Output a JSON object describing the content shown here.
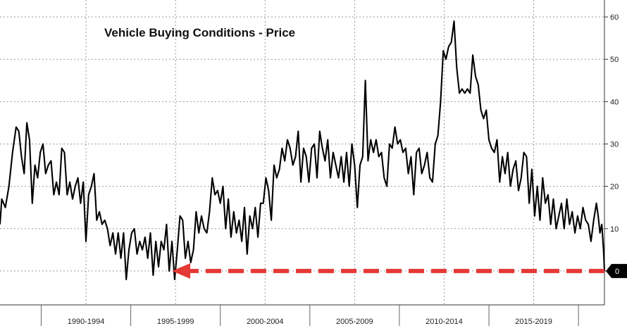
{
  "chart_data": {
    "type": "line",
    "title": "Vehicle Buying Conditions - Price",
    "xlabel": "",
    "ylabel": "",
    "x_range": [
      1987.7,
      2021.45
    ],
    "ylim": [
      -8,
      64
    ],
    "y_ticks": [
      0,
      10,
      20,
      30,
      40,
      50,
      60
    ],
    "y_axis_side": "right",
    "grid": true,
    "x_period_labels": [
      {
        "label": "1990-1994",
        "center": 1992.5
      },
      {
        "label": "1995-1999",
        "center": 1997.5
      },
      {
        "label": "2000-2004",
        "center": 2002.5
      },
      {
        "label": "2005-2009",
        "center": 2007.5
      },
      {
        "label": "2010-2014",
        "center": 2012.5
      },
      {
        "label": "2015-2019",
        "center": 2017.5
      }
    ],
    "x_period_boundaries": [
      1990,
      1995,
      2000,
      2005,
      2010,
      2015,
      2020
    ],
    "last_value_label": "0",
    "series": [
      {
        "color": "#000000",
        "points": [
          [
            1987.7,
            11
          ],
          [
            1987.8,
            17
          ],
          [
            1988.0,
            15
          ],
          [
            1988.2,
            20
          ],
          [
            1988.4,
            28
          ],
          [
            1988.6,
            34
          ],
          [
            1988.75,
            33
          ],
          [
            1988.9,
            27
          ],
          [
            1989.05,
            23
          ],
          [
            1989.2,
            35
          ],
          [
            1989.35,
            31
          ],
          [
            1989.5,
            16
          ],
          [
            1989.65,
            25
          ],
          [
            1989.8,
            22
          ],
          [
            1989.95,
            28
          ],
          [
            1990.1,
            30
          ],
          [
            1990.25,
            23
          ],
          [
            1990.4,
            25
          ],
          [
            1990.55,
            26
          ],
          [
            1990.7,
            18
          ],
          [
            1990.85,
            21
          ],
          [
            1991.0,
            18
          ],
          [
            1991.15,
            29
          ],
          [
            1991.3,
            28
          ],
          [
            1991.45,
            18
          ],
          [
            1991.6,
            21
          ],
          [
            1991.75,
            17
          ],
          [
            1991.9,
            20
          ],
          [
            1992.05,
            22
          ],
          [
            1992.2,
            16
          ],
          [
            1992.35,
            21
          ],
          [
            1992.5,
            7
          ],
          [
            1992.65,
            18
          ],
          [
            1992.8,
            20
          ],
          [
            1992.95,
            23
          ],
          [
            1993.1,
            12
          ],
          [
            1993.25,
            14
          ],
          [
            1993.4,
            11
          ],
          [
            1993.55,
            12
          ],
          [
            1993.7,
            10
          ],
          [
            1993.85,
            6
          ],
          [
            1994.0,
            9
          ],
          [
            1994.15,
            4
          ],
          [
            1994.3,
            9
          ],
          [
            1994.45,
            3
          ],
          [
            1994.6,
            9
          ],
          [
            1994.75,
            -2
          ],
          [
            1994.9,
            5
          ],
          [
            1995.05,
            9
          ],
          [
            1995.2,
            10
          ],
          [
            1995.35,
            4
          ],
          [
            1995.5,
            7
          ],
          [
            1995.65,
            5
          ],
          [
            1995.8,
            8
          ],
          [
            1995.95,
            3
          ],
          [
            1996.1,
            9
          ],
          [
            1996.25,
            -1
          ],
          [
            1996.4,
            7
          ],
          [
            1996.55,
            1
          ],
          [
            1996.7,
            7
          ],
          [
            1996.85,
            5
          ],
          [
            1997.0,
            11
          ],
          [
            1997.15,
            0
          ],
          [
            1997.3,
            7
          ],
          [
            1997.45,
            -2
          ],
          [
            1997.6,
            5
          ],
          [
            1997.75,
            13
          ],
          [
            1997.9,
            12
          ],
          [
            1998.05,
            3
          ],
          [
            1998.2,
            7
          ],
          [
            1998.35,
            2
          ],
          [
            1998.5,
            5
          ],
          [
            1998.65,
            14
          ],
          [
            1998.8,
            9
          ],
          [
            1998.95,
            13
          ],
          [
            1999.1,
            10
          ],
          [
            1999.25,
            9
          ],
          [
            1999.4,
            14
          ],
          [
            1999.55,
            22
          ],
          [
            1999.7,
            18
          ],
          [
            1999.85,
            19
          ],
          [
            2000.0,
            16
          ],
          [
            2000.15,
            20
          ],
          [
            2000.3,
            10
          ],
          [
            2000.45,
            17
          ],
          [
            2000.6,
            8
          ],
          [
            2000.75,
            14
          ],
          [
            2000.9,
            9
          ],
          [
            2001.05,
            12
          ],
          [
            2001.2,
            7
          ],
          [
            2001.35,
            15
          ],
          [
            2001.5,
            4
          ],
          [
            2001.65,
            13
          ],
          [
            2001.8,
            10
          ],
          [
            2001.95,
            15
          ],
          [
            2002.1,
            8
          ],
          [
            2002.25,
            16
          ],
          [
            2002.4,
            16
          ],
          [
            2002.55,
            22
          ],
          [
            2002.7,
            19
          ],
          [
            2002.85,
            12
          ],
          [
            2003.0,
            25
          ],
          [
            2003.15,
            22
          ],
          [
            2003.3,
            24
          ],
          [
            2003.45,
            29
          ],
          [
            2003.6,
            26
          ],
          [
            2003.75,
            31
          ],
          [
            2003.9,
            29
          ],
          [
            2004.05,
            25
          ],
          [
            2004.2,
            27
          ],
          [
            2004.35,
            33
          ],
          [
            2004.5,
            21
          ],
          [
            2004.65,
            29
          ],
          [
            2004.8,
            27
          ],
          [
            2004.95,
            21
          ],
          [
            2005.1,
            29
          ],
          [
            2005.25,
            30
          ],
          [
            2005.4,
            22
          ],
          [
            2005.55,
            33
          ],
          [
            2005.7,
            29
          ],
          [
            2005.85,
            26
          ],
          [
            2006.0,
            31
          ],
          [
            2006.15,
            22
          ],
          [
            2006.3,
            28
          ],
          [
            2006.45,
            25
          ],
          [
            2006.6,
            22
          ],
          [
            2006.75,
            27
          ],
          [
            2006.9,
            21
          ],
          [
            2007.05,
            28
          ],
          [
            2007.2,
            20
          ],
          [
            2007.35,
            30
          ],
          [
            2007.5,
            25
          ],
          [
            2007.65,
            15
          ],
          [
            2007.8,
            25
          ],
          [
            2007.95,
            27
          ],
          [
            2008.1,
            45
          ],
          [
            2008.25,
            26
          ],
          [
            2008.4,
            31
          ],
          [
            2008.55,
            28
          ],
          [
            2008.7,
            31
          ],
          [
            2008.85,
            27
          ],
          [
            2009.0,
            28
          ],
          [
            2009.15,
            22
          ],
          [
            2009.3,
            20
          ],
          [
            2009.45,
            30
          ],
          [
            2009.6,
            29
          ],
          [
            2009.75,
            34
          ],
          [
            2009.9,
            30
          ],
          [
            2010.05,
            31
          ],
          [
            2010.2,
            28
          ],
          [
            2010.35,
            29
          ],
          [
            2010.5,
            23
          ],
          [
            2010.65,
            27
          ],
          [
            2010.8,
            18
          ],
          [
            2010.95,
            28
          ],
          [
            2011.1,
            29
          ],
          [
            2011.25,
            23
          ],
          [
            2011.4,
            25
          ],
          [
            2011.55,
            28
          ],
          [
            2011.7,
            22
          ],
          [
            2011.85,
            21
          ],
          [
            2012.0,
            30
          ],
          [
            2012.15,
            32
          ],
          [
            2012.3,
            40
          ],
          [
            2012.45,
            52
          ],
          [
            2012.6,
            50
          ],
          [
            2012.75,
            53
          ],
          [
            2012.9,
            54
          ],
          [
            2013.05,
            59
          ],
          [
            2013.2,
            48
          ],
          [
            2013.35,
            42
          ],
          [
            2013.5,
            43
          ],
          [
            2013.65,
            42
          ],
          [
            2013.8,
            43
          ],
          [
            2013.95,
            42
          ],
          [
            2014.1,
            51
          ],
          [
            2014.25,
            46
          ],
          [
            2014.4,
            44
          ],
          [
            2014.55,
            38
          ],
          [
            2014.7,
            36
          ],
          [
            2014.85,
            38
          ],
          [
            2015.0,
            31
          ],
          [
            2015.15,
            29
          ],
          [
            2015.3,
            28
          ],
          [
            2015.45,
            31
          ],
          [
            2015.6,
            21
          ],
          [
            2015.75,
            27
          ],
          [
            2015.9,
            23
          ],
          [
            2016.05,
            28
          ],
          [
            2016.2,
            20
          ],
          [
            2016.35,
            24
          ],
          [
            2016.5,
            26
          ],
          [
            2016.65,
            19
          ],
          [
            2016.8,
            22
          ],
          [
            2016.95,
            28
          ],
          [
            2017.1,
            27
          ],
          [
            2017.25,
            16
          ],
          [
            2017.4,
            24
          ],
          [
            2017.55,
            13
          ],
          [
            2017.7,
            20
          ],
          [
            2017.85,
            12
          ],
          [
            2018.0,
            22
          ],
          [
            2018.15,
            16
          ],
          [
            2018.3,
            18
          ],
          [
            2018.45,
            11
          ],
          [
            2018.6,
            17
          ],
          [
            2018.75,
            10
          ],
          [
            2018.9,
            13
          ],
          [
            2019.05,
            16
          ],
          [
            2019.2,
            10
          ],
          [
            2019.35,
            17
          ],
          [
            2019.5,
            11
          ],
          [
            2019.65,
            14
          ],
          [
            2019.8,
            9
          ],
          [
            2019.95,
            13
          ],
          [
            2020.1,
            10
          ],
          [
            2020.25,
            15
          ],
          [
            2020.4,
            12
          ],
          [
            2020.55,
            11
          ],
          [
            2020.7,
            7
          ],
          [
            2020.85,
            12
          ],
          [
            2021.0,
            16
          ],
          [
            2021.1,
            13
          ],
          [
            2021.2,
            9
          ],
          [
            2021.3,
            11
          ],
          [
            2021.4,
            5
          ],
          [
            2021.45,
            0
          ]
        ]
      }
    ],
    "annotations": [
      {
        "type": "arrow",
        "style": "dashed",
        "color": "#e53935",
        "direction": "left",
        "y": 0,
        "x_from": 2021.45,
        "x_to": 1997.3
      }
    ]
  }
}
